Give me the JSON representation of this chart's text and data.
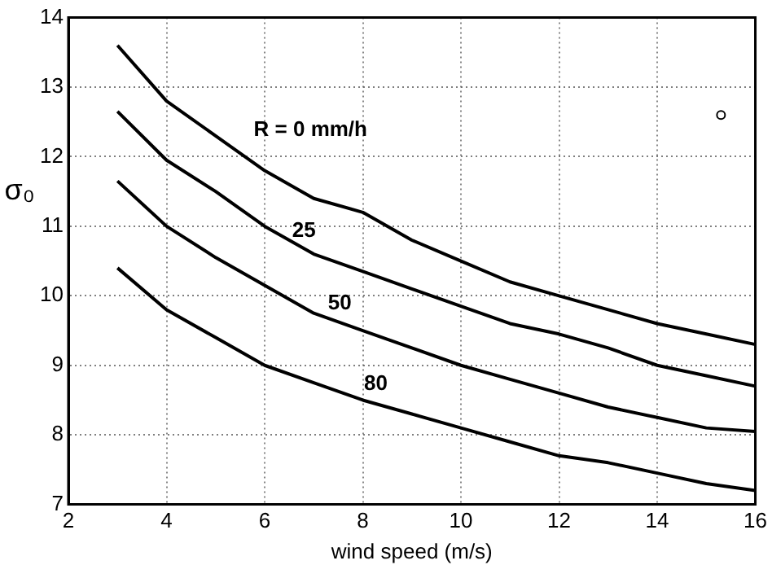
{
  "chart_data": {
    "type": "line",
    "xlabel": "wind speed (m/s)",
    "ylabel": "σ₀",
    "x": [
      3,
      4,
      5,
      6,
      7,
      8,
      9,
      10,
      11,
      12,
      13,
      14,
      15,
      16
    ],
    "series": [
      {
        "name": "R = 0 mm/h",
        "color": "#000000",
        "values": [
          13.6,
          12.8,
          12.3,
          11.8,
          11.4,
          11.2,
          10.8,
          10.5,
          10.2,
          10.0,
          9.8,
          9.6,
          9.45,
          9.3
        ]
      },
      {
        "name": "25",
        "color": "#000000",
        "values": [
          12.65,
          11.95,
          11.5,
          11.0,
          10.6,
          10.35,
          10.1,
          9.85,
          9.6,
          9.45,
          9.25,
          9.0,
          8.85,
          8.7
        ]
      },
      {
        "name": "50",
        "color": "#000000",
        "values": [
          11.65,
          11.0,
          10.55,
          10.15,
          9.75,
          9.5,
          9.25,
          9.0,
          8.8,
          8.6,
          8.4,
          8.25,
          8.1,
          8.05
        ]
      },
      {
        "name": "80",
        "color": "#000000",
        "values": [
          10.4,
          9.8,
          9.4,
          9.0,
          8.75,
          8.5,
          8.3,
          8.1,
          7.9,
          7.7,
          7.6,
          7.45,
          7.3,
          7.2
        ]
      },
      {
        "type": "scatter",
        "color": "#000000",
        "marker": "circle",
        "x": [
          15.3
        ],
        "values": [
          12.6
        ]
      }
    ],
    "xlim": [
      2,
      16
    ],
    "xticks": [
      2,
      4,
      6,
      8,
      10,
      12,
      14,
      16
    ],
    "ylim": [
      7,
      14
    ],
    "yticks": [
      7,
      8,
      9,
      10,
      11,
      12,
      13,
      14
    ],
    "grid": true,
    "marker": "none",
    "line_style": "solid",
    "legend": false
  }
}
